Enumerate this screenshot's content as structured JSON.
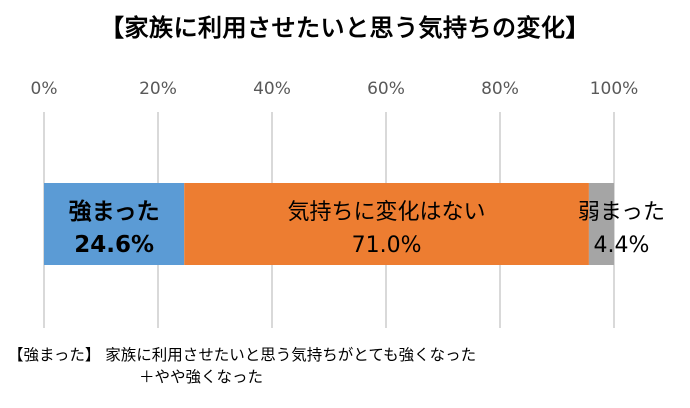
{
  "chart_data": {
    "type": "bar",
    "orientation": "horizontal",
    "stacked": true,
    "percent": true,
    "title": "【家族に利用させたいと思う気持ちの変化】",
    "xlim": [
      0,
      100
    ],
    "xticks": [
      "0%",
      "20%",
      "40%",
      "60%",
      "80%",
      "100%"
    ],
    "grid": true,
    "legend": "none",
    "series": [
      {
        "name": "強まった",
        "value": 24.6,
        "value_label": "24.6%",
        "color": "#5b9bd5",
        "label_bold": true,
        "label_position": "inside"
      },
      {
        "name": "気持ちに変化はない",
        "value": 71.0,
        "value_label": "71.0%",
        "color": "#ed7d31",
        "label_bold": false,
        "label_position": "inside"
      },
      {
        "name": "弱まった",
        "value": 4.4,
        "value_label": "4.4%",
        "color": "#a5a5a5",
        "label_bold": false,
        "label_position": "outside-right"
      }
    ]
  },
  "footnote": {
    "line1": "【強まった】 家族に利用させたいと思う気持ちがとても強くなった",
    "line2": "＋やや強くなった"
  }
}
